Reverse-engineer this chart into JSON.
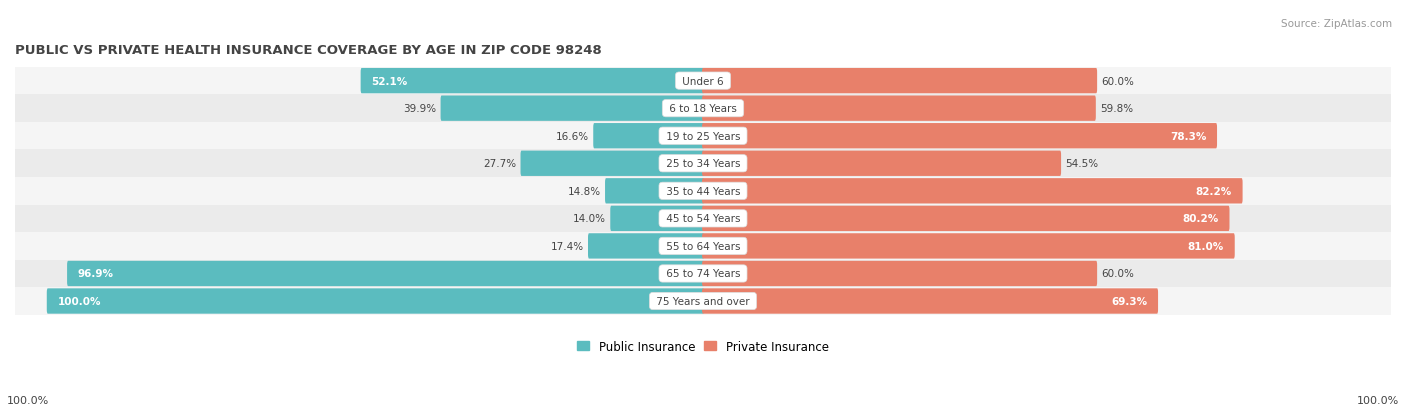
{
  "title": "PUBLIC VS PRIVATE HEALTH INSURANCE COVERAGE BY AGE IN ZIP CODE 98248",
  "source": "Source: ZipAtlas.com",
  "categories": [
    "Under 6",
    "6 to 18 Years",
    "19 to 25 Years",
    "25 to 34 Years",
    "35 to 44 Years",
    "45 to 54 Years",
    "55 to 64 Years",
    "65 to 74 Years",
    "75 Years and over"
  ],
  "public_values": [
    52.1,
    39.9,
    16.6,
    27.7,
    14.8,
    14.0,
    17.4,
    96.9,
    100.0
  ],
  "private_values": [
    60.0,
    59.8,
    78.3,
    54.5,
    82.2,
    80.2,
    81.0,
    60.0,
    69.3
  ],
  "public_color": "#5bbcbf",
  "private_color": "#e8806a",
  "public_color_light": "#a8d8da",
  "private_color_light": "#f0b8a8",
  "public_label": "Public Insurance",
  "private_label": "Private Insurance",
  "row_bg_colors": [
    "#f5f5f5",
    "#ebebeb"
  ],
  "text_dark": "#444444",
  "text_white": "#ffffff",
  "axis_label_left": "100.0%",
  "axis_label_right": "100.0%",
  "title_color": "#444444",
  "source_color": "#999999",
  "white_label_threshold_pub": 50,
  "white_label_threshold_priv": 65
}
